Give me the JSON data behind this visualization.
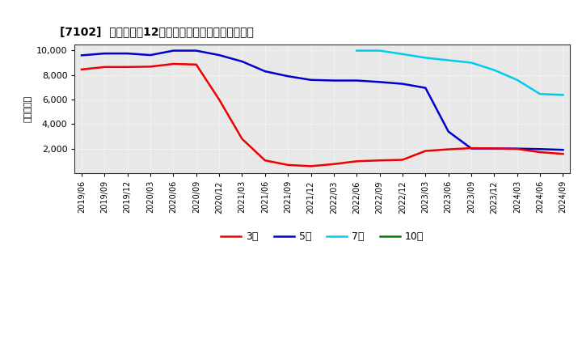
{
  "title": "[7102]  当期純利益12か月移動合計の標準偏差の推移",
  "ylabel": "（百万円）",
  "ylim": [
    0,
    10500
  ],
  "yticks": [
    2000,
    4000,
    6000,
    8000,
    10000
  ],
  "background_color": "#ffffff",
  "plot_bg_color": "#e8e8e8",
  "grid_color": "#ffffff",
  "line_colors": {
    "3年": "#ee0000",
    "5年": "#0000cc",
    "7年": "#00ccee",
    "10年": "#007700"
  },
  "line_width": 1.8,
  "x_labels": [
    "2019/06",
    "2019/09",
    "2019/12",
    "2020/03",
    "2020/06",
    "2020/09",
    "2020/12",
    "2021/03",
    "2021/06",
    "2021/09",
    "2021/12",
    "2022/03",
    "2022/06",
    "2022/09",
    "2022/12",
    "2023/03",
    "2023/06",
    "2023/09",
    "2023/12",
    "2024/03",
    "2024/06",
    "2024/09"
  ],
  "series_3y": [
    8450,
    8650,
    8650,
    8680,
    8900,
    8850,
    6000,
    2800,
    1050,
    680,
    580,
    750,
    980,
    1050,
    1100,
    1820,
    1950,
    2050,
    2020,
    1980,
    1720,
    1580
  ],
  "series_5y": [
    9600,
    9750,
    9750,
    9620,
    9980,
    9980,
    9620,
    9100,
    8300,
    7900,
    7600,
    7550,
    7550,
    7430,
    7280,
    6950,
    3400,
    2020,
    2020,
    2010,
    1970,
    1910
  ],
  "series_7y_x": [
    12,
    13,
    14,
    15,
    16,
    17,
    18,
    19,
    20,
    21
  ],
  "series_7y_y": [
    9980,
    9980,
    9700,
    9400,
    9200,
    9000,
    8400,
    7600,
    6450,
    6380
  ],
  "series_10y": [],
  "legend_labels": [
    "3年",
    "5年",
    "7年",
    "10年"
  ]
}
